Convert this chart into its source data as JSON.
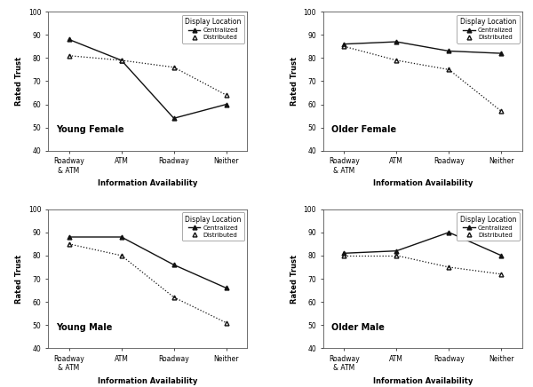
{
  "x_labels": [
    "Roadway\n& ATM",
    "ATM",
    "Roadway",
    "Neither"
  ],
  "x_positions": [
    0,
    1,
    2,
    3
  ],
  "subplots": [
    {
      "title": "Young Female",
      "centralized": [
        88,
        79,
        54,
        60
      ],
      "distributed": [
        81,
        79,
        76,
        64
      ]
    },
    {
      "title": "Older Female",
      "centralized": [
        86,
        87,
        83,
        82
      ],
      "distributed": [
        85,
        79,
        75,
        57
      ]
    },
    {
      "title": "Young Male",
      "centralized": [
        88,
        88,
        76,
        66
      ],
      "distributed": [
        85,
        80,
        62,
        51
      ]
    },
    {
      "title": "Older Male",
      "centralized": [
        81,
        82,
        90,
        80
      ],
      "distributed": [
        80,
        80,
        75,
        72
      ]
    }
  ],
  "ylim": [
    40,
    100
  ],
  "yticks": [
    40,
    50,
    60,
    70,
    80,
    90,
    100
  ],
  "ylabel": "Rated Trust",
  "xlabel": "Information Availability",
  "legend_title": "Display Location",
  "legend_centralized": "Centralized",
  "legend_distributed": "Distributed",
  "line_color": "#111111",
  "fig_facecolor": "#ffffff",
  "ax_facecolor": "#ffffff",
  "title_fontsize": 7,
  "axis_label_fontsize": 6,
  "tick_fontsize": 5.5,
  "legend_fontsize": 5,
  "legend_title_fontsize": 5.5,
  "subplot_title_fontsize": 7
}
